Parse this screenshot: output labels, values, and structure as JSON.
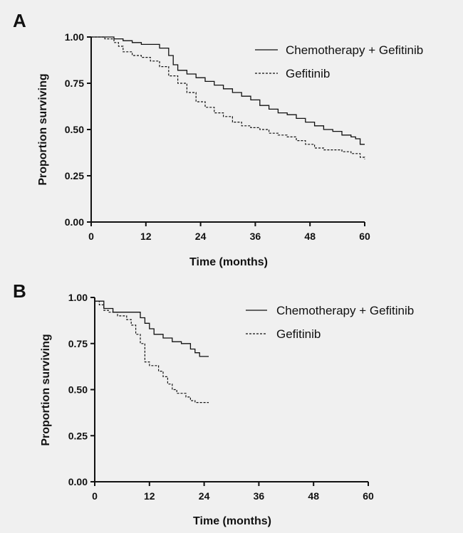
{
  "chart_data": [
    {
      "type": "line",
      "panel": "A",
      "xlabel": "Time (months)",
      "ylabel": "Proportion surviving",
      "xlim": [
        0,
        60
      ],
      "ylim": [
        0,
        1
      ],
      "x_ticks": [
        0,
        12,
        24,
        36,
        48,
        60
      ],
      "x_tick_labels": [
        "0",
        "12",
        "24",
        "36",
        "48",
        "60"
      ],
      "y_ticks": [
        0,
        0.25,
        0.5,
        0.75,
        1
      ],
      "y_tick_labels": [
        "0.00",
        "0.25",
        "0.50",
        "0.75",
        "1.00"
      ],
      "grid": false,
      "legend_position": "top-right",
      "series": [
        {
          "name": "Chemotherapy + Gefitinib",
          "style": "solid",
          "x": [
            0,
            3,
            5,
            7,
            9,
            11,
            13,
            15,
            17,
            18,
            19,
            21,
            23,
            25,
            27,
            29,
            31,
            33,
            35,
            37,
            39,
            41,
            43,
            45,
            47,
            49,
            51,
            53,
            55,
            57,
            58,
            59,
            60
          ],
          "y": [
            1.0,
            1.0,
            0.99,
            0.98,
            0.97,
            0.96,
            0.96,
            0.94,
            0.9,
            0.85,
            0.82,
            0.8,
            0.78,
            0.76,
            0.74,
            0.72,
            0.7,
            0.68,
            0.66,
            0.63,
            0.61,
            0.59,
            0.58,
            0.56,
            0.54,
            0.52,
            0.5,
            0.49,
            0.47,
            0.46,
            0.45,
            0.42,
            0.42
          ]
        },
        {
          "name": "Gefitinib",
          "style": "dashed",
          "x": [
            0,
            3,
            5,
            6,
            7,
            9,
            11,
            13,
            15,
            17,
            19,
            21,
            23,
            25,
            27,
            29,
            31,
            33,
            35,
            37,
            39,
            41,
            43,
            45,
            47,
            49,
            51,
            53,
            55,
            57,
            59,
            60
          ],
          "y": [
            1.0,
            0.99,
            0.97,
            0.95,
            0.92,
            0.9,
            0.89,
            0.87,
            0.84,
            0.79,
            0.75,
            0.7,
            0.65,
            0.62,
            0.59,
            0.57,
            0.54,
            0.52,
            0.51,
            0.5,
            0.48,
            0.47,
            0.46,
            0.44,
            0.42,
            0.4,
            0.39,
            0.39,
            0.38,
            0.37,
            0.35,
            0.34
          ]
        }
      ]
    },
    {
      "type": "line",
      "panel": "B",
      "xlabel": "Time (months)",
      "ylabel": "Proportion surviving",
      "xlim": [
        0,
        60
      ],
      "ylim": [
        0,
        1
      ],
      "x_ticks": [
        0,
        12,
        24,
        36,
        48,
        60
      ],
      "x_tick_labels": [
        "0",
        "12",
        "24",
        "36",
        "48",
        "60"
      ],
      "y_ticks": [
        0,
        0.25,
        0.5,
        0.75,
        1
      ],
      "y_tick_labels": [
        "0.00",
        "0.25",
        "0.50",
        "0.75",
        "1.00"
      ],
      "grid": false,
      "legend_position": "top-right",
      "series": [
        {
          "name": "Chemotherapy + Gefitinib",
          "style": "solid",
          "x": [
            0,
            1.5,
            2,
            4,
            9,
            10,
            11,
            12,
            13,
            15,
            17,
            19,
            21,
            22,
            23,
            25
          ],
          "y": [
            0.98,
            0.98,
            0.94,
            0.92,
            0.92,
            0.89,
            0.86,
            0.83,
            0.8,
            0.78,
            0.76,
            0.75,
            0.72,
            0.7,
            0.68,
            0.68
          ]
        },
        {
          "name": "Gefitinib",
          "style": "dashed",
          "x": [
            0,
            1,
            2,
            3,
            5,
            7,
            8,
            9,
            10,
            11,
            12,
            14,
            15,
            16,
            17,
            18,
            20,
            21,
            22,
            23,
            25
          ],
          "y": [
            0.98,
            0.96,
            0.93,
            0.92,
            0.9,
            0.88,
            0.85,
            0.8,
            0.75,
            0.65,
            0.63,
            0.6,
            0.57,
            0.53,
            0.5,
            0.48,
            0.46,
            0.44,
            0.43,
            0.43,
            0.43
          ]
        }
      ]
    }
  ]
}
